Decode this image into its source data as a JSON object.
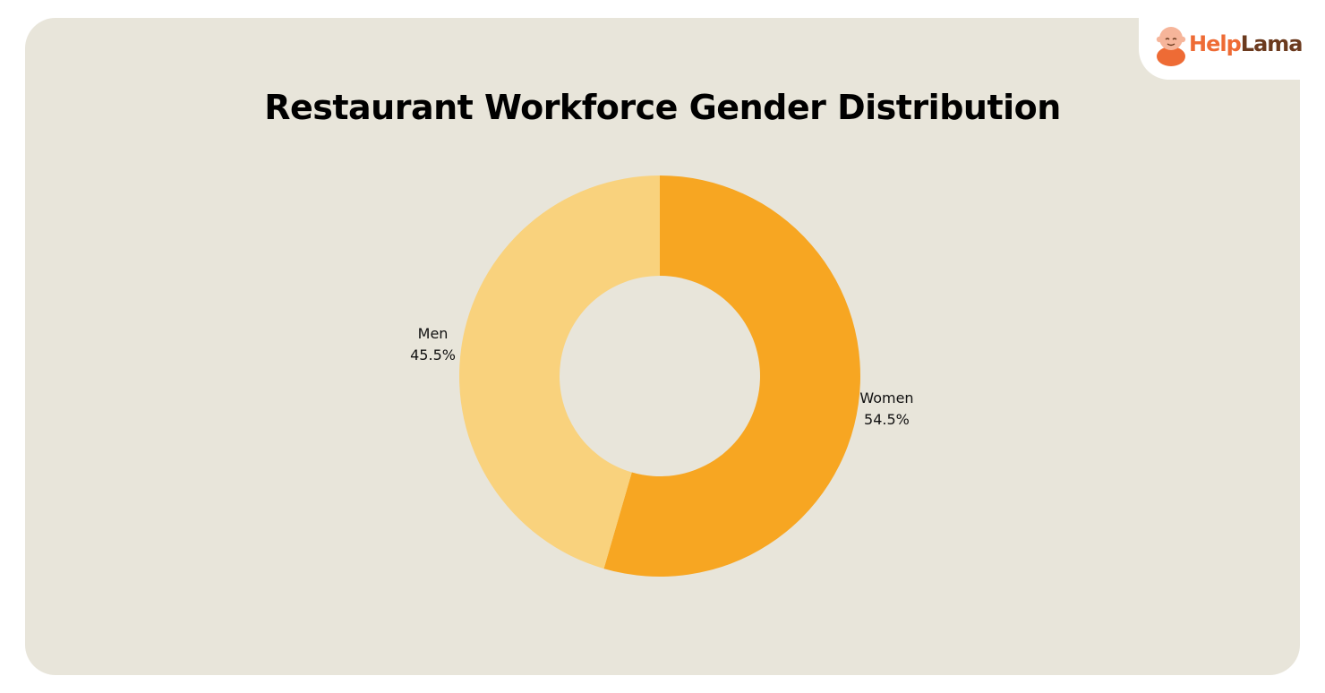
{
  "brand": {
    "part1": "Help",
    "part2": "Lama",
    "logo_icon": "monk-mascot-icon",
    "color_primary": "#ee6b35",
    "color_secondary": "#6b3a1e"
  },
  "chart_data": {
    "type": "pie",
    "style": "donut",
    "title": "Restaurant Workforce Gender Distribution",
    "slices": [
      {
        "name": "Women",
        "value": 54.5,
        "label": "54.5%",
        "color": "#f7a622"
      },
      {
        "name": "Men",
        "value": 45.5,
        "label": "45.5%",
        "color": "#f9d27d"
      }
    ],
    "start_angle": "12 o'clock",
    "direction": "clockwise",
    "background_color": "#e8e5da",
    "legend": "none"
  }
}
